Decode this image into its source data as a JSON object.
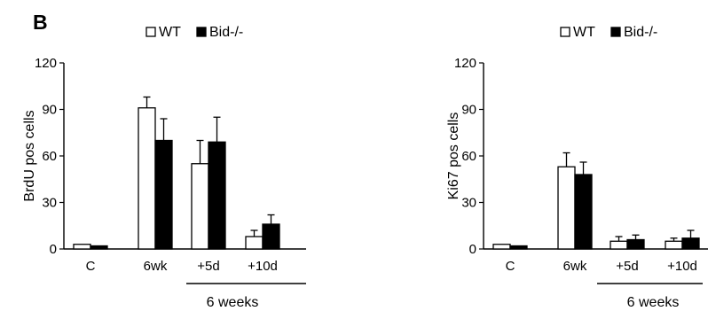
{
  "figure": {
    "panel_label": "B"
  },
  "chart_data": [
    {
      "type": "bar",
      "title": "",
      "xlabel": "",
      "ylabel": "BrdU pos cells",
      "ylim": [
        0,
        120
      ],
      "yticks": [
        "0",
        "30",
        "60",
        "90",
        "120"
      ],
      "categories": [
        "C",
        "6wk",
        "+5d",
        "+10d"
      ],
      "legend": {
        "placement": "top"
      },
      "series": [
        {
          "name": "WT",
          "color": "#ffffff",
          "values": [
            3,
            91,
            55,
            8
          ],
          "errors": [
            0,
            7,
            15,
            4
          ]
        },
        {
          "name": "Bid-/-",
          "color": "#000000",
          "values": [
            2,
            70,
            69,
            16
          ],
          "errors": [
            0,
            14,
            16,
            6
          ]
        }
      ],
      "group_bracket": {
        "label": "6 weeks",
        "spans": [
          "+5d",
          "+10d"
        ]
      }
    },
    {
      "type": "bar",
      "title": "",
      "xlabel": "",
      "ylabel": "Ki67 pos cells",
      "ylim": [
        0,
        120
      ],
      "yticks": [
        "0",
        "30",
        "60",
        "90",
        "120"
      ],
      "categories": [
        "C",
        "6wk",
        "+5d",
        "+10d"
      ],
      "legend": {
        "placement": "top"
      },
      "series": [
        {
          "name": "WT",
          "color": "#ffffff",
          "values": [
            3,
            53,
            5,
            5
          ],
          "errors": [
            0,
            9,
            3,
            2
          ]
        },
        {
          "name": "Bid-/-",
          "color": "#000000",
          "values": [
            2,
            48,
            6,
            7
          ],
          "errors": [
            0,
            8,
            3,
            5
          ]
        }
      ],
      "group_bracket": {
        "label": "6 weeks",
        "spans": [
          "+5d",
          "+10d"
        ]
      }
    }
  ]
}
